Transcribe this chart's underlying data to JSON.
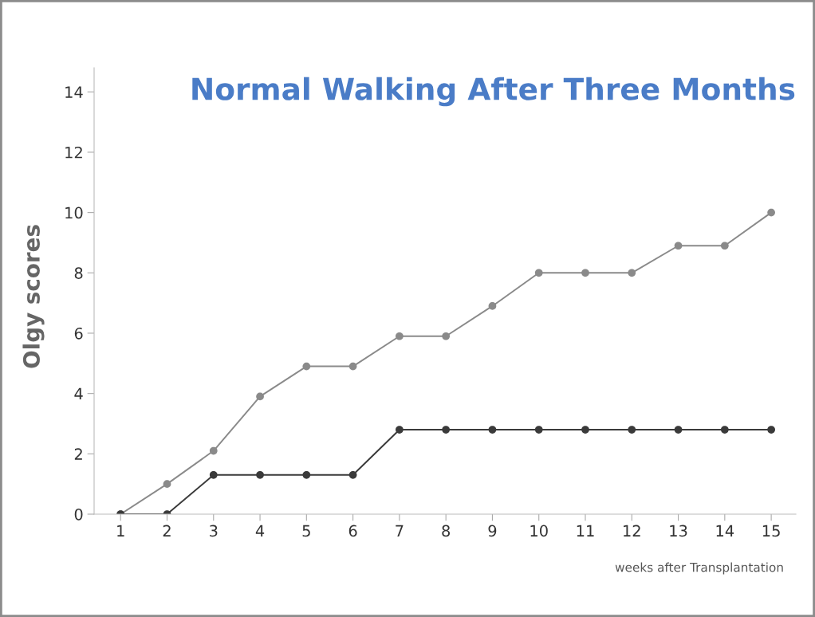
{
  "chart_data": {
    "type": "line",
    "title": "Normal Walking After Three Months",
    "xlabel": "weeks after Transplantation",
    "ylabel": "Olgy scores",
    "x": [
      1,
      2,
      3,
      4,
      5,
      6,
      7,
      8,
      9,
      10,
      11,
      12,
      13,
      14,
      15
    ],
    "series": [
      {
        "color": "#8a8a8a",
        "values": [
          0,
          1.0,
          2.1,
          3.9,
          4.9,
          4.9,
          5.9,
          5.9,
          6.9,
          8,
          8,
          8,
          8.9,
          8.9,
          10
        ]
      },
      {
        "color": "#3a3a3a",
        "values": [
          0,
          0,
          1.3,
          1.3,
          1.3,
          1.3,
          2.8,
          2.8,
          2.8,
          2.8,
          2.8,
          2.8,
          2.8,
          2.8,
          2.8
        ]
      }
    ],
    "xlim": [
      0.43,
      15.53
    ],
    "xticks": [
      1,
      2,
      3,
      4,
      5,
      6,
      7,
      8,
      9,
      10,
      11,
      12,
      13,
      14,
      15
    ],
    "ylim": [
      0,
      14.8
    ],
    "yticks": [
      0,
      2,
      4,
      6,
      8,
      10,
      12,
      14
    ],
    "marker": "circle",
    "line_style": "solid",
    "grid": false,
    "legend": false
  }
}
